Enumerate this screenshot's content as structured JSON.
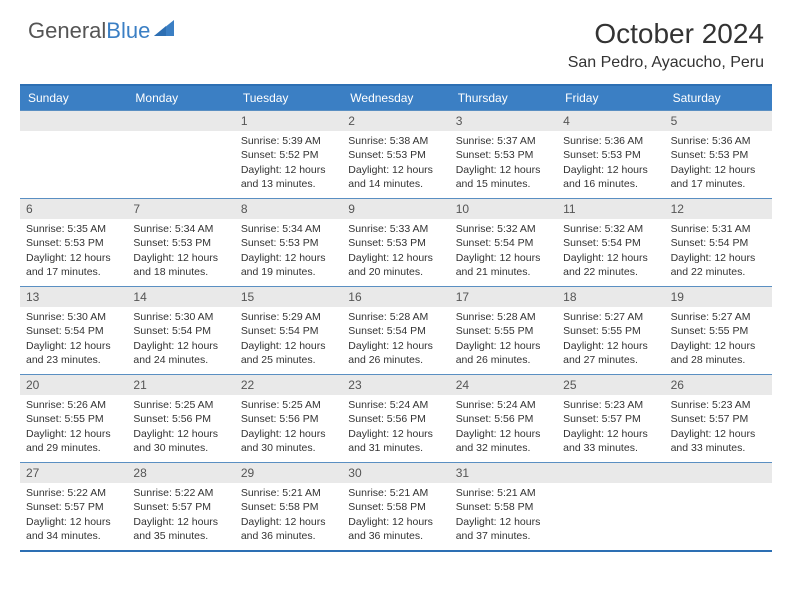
{
  "logo": {
    "part1": "General",
    "part2": "Blue"
  },
  "title": "October 2024",
  "location": "San Pedro, Ayacucho, Peru",
  "colors": {
    "header_bg": "#3b7fc4",
    "header_text": "#ffffff",
    "border": "#5a8fc2",
    "border_thick": "#2d6fb3",
    "daynum_bg": "#e9e9e9",
    "text": "#333333",
    "background": "#ffffff"
  },
  "day_names": [
    "Sunday",
    "Monday",
    "Tuesday",
    "Wednesday",
    "Thursday",
    "Friday",
    "Saturday"
  ],
  "lead_empty": 2,
  "trail_empty": 2,
  "days": [
    {
      "n": 1,
      "sr": "5:39 AM",
      "ss": "5:52 PM",
      "dl": "12 hours and 13 minutes."
    },
    {
      "n": 2,
      "sr": "5:38 AM",
      "ss": "5:53 PM",
      "dl": "12 hours and 14 minutes."
    },
    {
      "n": 3,
      "sr": "5:37 AM",
      "ss": "5:53 PM",
      "dl": "12 hours and 15 minutes."
    },
    {
      "n": 4,
      "sr": "5:36 AM",
      "ss": "5:53 PM",
      "dl": "12 hours and 16 minutes."
    },
    {
      "n": 5,
      "sr": "5:36 AM",
      "ss": "5:53 PM",
      "dl": "12 hours and 17 minutes."
    },
    {
      "n": 6,
      "sr": "5:35 AM",
      "ss": "5:53 PM",
      "dl": "12 hours and 17 minutes."
    },
    {
      "n": 7,
      "sr": "5:34 AM",
      "ss": "5:53 PM",
      "dl": "12 hours and 18 minutes."
    },
    {
      "n": 8,
      "sr": "5:34 AM",
      "ss": "5:53 PM",
      "dl": "12 hours and 19 minutes."
    },
    {
      "n": 9,
      "sr": "5:33 AM",
      "ss": "5:53 PM",
      "dl": "12 hours and 20 minutes."
    },
    {
      "n": 10,
      "sr": "5:32 AM",
      "ss": "5:54 PM",
      "dl": "12 hours and 21 minutes."
    },
    {
      "n": 11,
      "sr": "5:32 AM",
      "ss": "5:54 PM",
      "dl": "12 hours and 22 minutes."
    },
    {
      "n": 12,
      "sr": "5:31 AM",
      "ss": "5:54 PM",
      "dl": "12 hours and 22 minutes."
    },
    {
      "n": 13,
      "sr": "5:30 AM",
      "ss": "5:54 PM",
      "dl": "12 hours and 23 minutes."
    },
    {
      "n": 14,
      "sr": "5:30 AM",
      "ss": "5:54 PM",
      "dl": "12 hours and 24 minutes."
    },
    {
      "n": 15,
      "sr": "5:29 AM",
      "ss": "5:54 PM",
      "dl": "12 hours and 25 minutes."
    },
    {
      "n": 16,
      "sr": "5:28 AM",
      "ss": "5:54 PM",
      "dl": "12 hours and 26 minutes."
    },
    {
      "n": 17,
      "sr": "5:28 AM",
      "ss": "5:55 PM",
      "dl": "12 hours and 26 minutes."
    },
    {
      "n": 18,
      "sr": "5:27 AM",
      "ss": "5:55 PM",
      "dl": "12 hours and 27 minutes."
    },
    {
      "n": 19,
      "sr": "5:27 AM",
      "ss": "5:55 PM",
      "dl": "12 hours and 28 minutes."
    },
    {
      "n": 20,
      "sr": "5:26 AM",
      "ss": "5:55 PM",
      "dl": "12 hours and 29 minutes."
    },
    {
      "n": 21,
      "sr": "5:25 AM",
      "ss": "5:56 PM",
      "dl": "12 hours and 30 minutes."
    },
    {
      "n": 22,
      "sr": "5:25 AM",
      "ss": "5:56 PM",
      "dl": "12 hours and 30 minutes."
    },
    {
      "n": 23,
      "sr": "5:24 AM",
      "ss": "5:56 PM",
      "dl": "12 hours and 31 minutes."
    },
    {
      "n": 24,
      "sr": "5:24 AM",
      "ss": "5:56 PM",
      "dl": "12 hours and 32 minutes."
    },
    {
      "n": 25,
      "sr": "5:23 AM",
      "ss": "5:57 PM",
      "dl": "12 hours and 33 minutes."
    },
    {
      "n": 26,
      "sr": "5:23 AM",
      "ss": "5:57 PM",
      "dl": "12 hours and 33 minutes."
    },
    {
      "n": 27,
      "sr": "5:22 AM",
      "ss": "5:57 PM",
      "dl": "12 hours and 34 minutes."
    },
    {
      "n": 28,
      "sr": "5:22 AM",
      "ss": "5:57 PM",
      "dl": "12 hours and 35 minutes."
    },
    {
      "n": 29,
      "sr": "5:21 AM",
      "ss": "5:58 PM",
      "dl": "12 hours and 36 minutes."
    },
    {
      "n": 30,
      "sr": "5:21 AM",
      "ss": "5:58 PM",
      "dl": "12 hours and 36 minutes."
    },
    {
      "n": 31,
      "sr": "5:21 AM",
      "ss": "5:58 PM",
      "dl": "12 hours and 37 minutes."
    }
  ],
  "labels": {
    "sunrise": "Sunrise:",
    "sunset": "Sunset:",
    "daylight": "Daylight:"
  }
}
